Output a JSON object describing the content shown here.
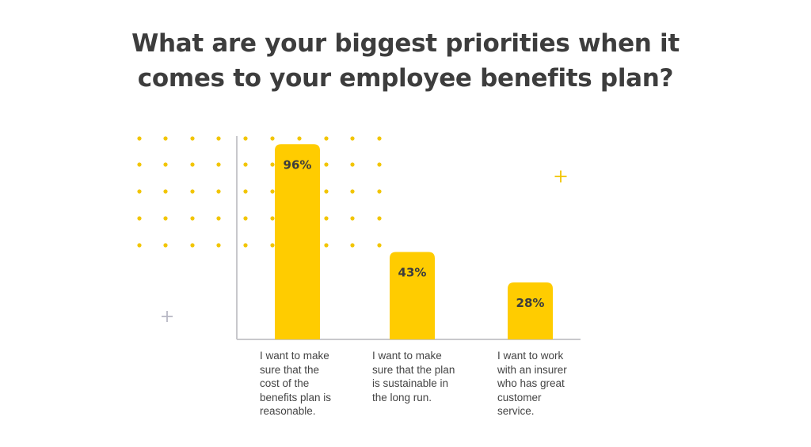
{
  "title_lines": [
    "What are your biggest priorities when it",
    "comes to your employee benefits plan?"
  ],
  "colors": {
    "bar": "#ffcc00",
    "dots": "#f2c500",
    "axis": "#c8c8cc",
    "plus_yellow": "#f2c500",
    "plus_gray": "#b8b8c4",
    "title": "#3d3d3d"
  },
  "chart_data": {
    "type": "bar",
    "title": "What are your biggest priorities when it comes to your employee benefits plan?",
    "categories": [
      "I want to make sure that the cost of the benefits plan is reasonable.",
      "I want to make sure that the plan is sustainable in the long run.",
      "I want to work with an insurer who has great customer service."
    ],
    "category_lines": [
      [
        "I want to make",
        "sure that the",
        "cost of the",
        "benefits plan is",
        "reasonable."
      ],
      [
        "I want to make",
        "sure that the plan",
        "is sustainable in",
        "the long run."
      ],
      [
        "I want to work",
        "with an insurer",
        "who has great",
        "customer",
        "service."
      ]
    ],
    "values": [
      96,
      43,
      28
    ],
    "value_labels": [
      "96%",
      "43%",
      "28%"
    ],
    "unit": "%",
    "ylim": [
      0,
      100
    ],
    "grid": false,
    "legend": "none"
  }
}
